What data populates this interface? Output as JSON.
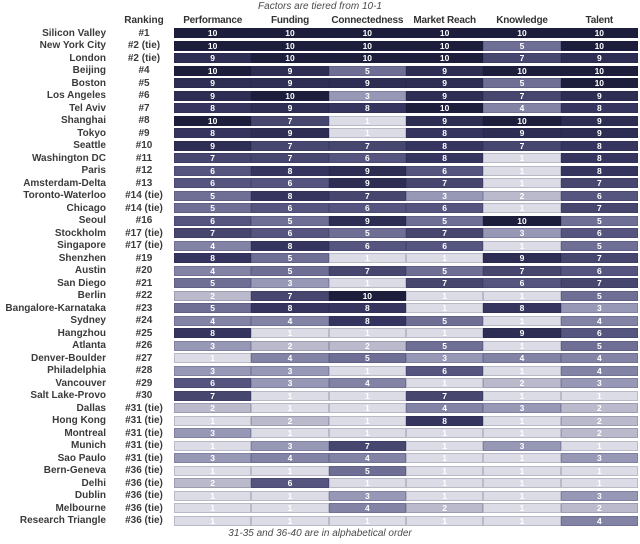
{
  "colors": {
    "10": "#1d1d3c",
    "9": "#2e2e54",
    "8": "#35355f",
    "7": "#46466f",
    "6": "#555580",
    "5": "#6f6f96",
    "4": "#8383a6",
    "3": "#9797b6",
    "2": "#babacc",
    "1": "#dcdce6",
    "cell_text": "#ffffff",
    "label_text": "#3b3b3b"
  },
  "chart_data": {
    "type": "heatmap",
    "title": "Factors are tiered from 10-1",
    "footnote": "31-35 and 36-40 are in alphabetical order",
    "ranking_header": "Ranking",
    "columns": [
      "Performance",
      "Funding",
      "Connectedness",
      "Market Reach",
      "Knowledge",
      "Talent"
    ],
    "scale": {
      "min": 1,
      "max": 10
    },
    "rows": [
      {
        "city": "Silicon Valley",
        "ranking": "#1",
        "scores": [
          10,
          10,
          10,
          10,
          10,
          10
        ]
      },
      {
        "city": "New York City",
        "ranking": "#2 (tie)",
        "scores": [
          10,
          10,
          10,
          10,
          5,
          10
        ]
      },
      {
        "city": "London",
        "ranking": "#2 (tie)",
        "scores": [
          9,
          10,
          10,
          10,
          7,
          9
        ]
      },
      {
        "city": "Beijing",
        "ranking": "#4",
        "scores": [
          10,
          9,
          5,
          9,
          10,
          10
        ]
      },
      {
        "city": "Boston",
        "ranking": "#5",
        "scores": [
          9,
          9,
          9,
          9,
          5,
          10
        ]
      },
      {
        "city": "Los Angeles",
        "ranking": "#6",
        "scores": [
          9,
          10,
          3,
          9,
          7,
          9
        ]
      },
      {
        "city": "Tel Aviv",
        "ranking": "#7",
        "scores": [
          8,
          9,
          8,
          10,
          4,
          8
        ]
      },
      {
        "city": "Shanghai",
        "ranking": "#8",
        "scores": [
          10,
          7,
          1,
          9,
          10,
          9
        ]
      },
      {
        "city": "Tokyo",
        "ranking": "#9",
        "scores": [
          8,
          9,
          1,
          8,
          9,
          9
        ]
      },
      {
        "city": "Seattle",
        "ranking": "#10",
        "scores": [
          9,
          7,
          7,
          8,
          7,
          8
        ]
      },
      {
        "city": "Washington DC",
        "ranking": "#11",
        "scores": [
          7,
          7,
          6,
          8,
          1,
          8
        ]
      },
      {
        "city": "Paris",
        "ranking": "#12",
        "scores": [
          6,
          8,
          9,
          6,
          1,
          8
        ]
      },
      {
        "city": "Amsterdam-Delta",
        "ranking": "#13",
        "scores": [
          6,
          6,
          9,
          7,
          1,
          7
        ]
      },
      {
        "city": "Toronto-Waterloo",
        "ranking": "#14 (tie)",
        "scores": [
          5,
          8,
          7,
          3,
          2,
          6
        ]
      },
      {
        "city": "Chicago",
        "ranking": "#14 (tie)",
        "scores": [
          5,
          6,
          6,
          6,
          1,
          7
        ]
      },
      {
        "city": "Seoul",
        "ranking": "#16",
        "scores": [
          6,
          5,
          9,
          5,
          10,
          5
        ]
      },
      {
        "city": "Stockholm",
        "ranking": "#17 (tie)",
        "scores": [
          7,
          6,
          5,
          7,
          3,
          6
        ]
      },
      {
        "city": "Singapore",
        "ranking": "#17 (tie)",
        "scores": [
          4,
          8,
          6,
          6,
          1,
          5
        ]
      },
      {
        "city": "Shenzhen",
        "ranking": "#19",
        "scores": [
          8,
          5,
          1,
          1,
          9,
          7
        ]
      },
      {
        "city": "Austin",
        "ranking": "#20",
        "scores": [
          4,
          5,
          7,
          5,
          7,
          6
        ]
      },
      {
        "city": "San Diego",
        "ranking": "#21",
        "scores": [
          5,
          3,
          1,
          7,
          6,
          7
        ]
      },
      {
        "city": "Berlin",
        "ranking": "#22",
        "scores": [
          2,
          7,
          10,
          1,
          1,
          5
        ]
      },
      {
        "city": "Bangalore-Karnataka",
        "ranking": "#23",
        "scores": [
          5,
          8,
          8,
          1,
          8,
          3
        ]
      },
      {
        "city": "Sydney",
        "ranking": "#24",
        "scores": [
          4,
          4,
          8,
          5,
          1,
          4
        ]
      },
      {
        "city": "Hangzhou",
        "ranking": "#25",
        "scores": [
          8,
          1,
          1,
          1,
          9,
          6
        ]
      },
      {
        "city": "Atlanta",
        "ranking": "#26",
        "scores": [
          3,
          2,
          2,
          5,
          1,
          5
        ]
      },
      {
        "city": "Denver-Boulder",
        "ranking": "#27",
        "scores": [
          1,
          4,
          5,
          3,
          4,
          4
        ]
      },
      {
        "city": "Philadelphia",
        "ranking": "#28",
        "scores": [
          3,
          3,
          1,
          6,
          1,
          4
        ]
      },
      {
        "city": "Vancouver",
        "ranking": "#29",
        "scores": [
          6,
          3,
          4,
          1,
          2,
          3
        ]
      },
      {
        "city": "Salt Lake-Provo",
        "ranking": "#30",
        "scores": [
          7,
          1,
          1,
          7,
          1,
          1
        ]
      },
      {
        "city": "Dallas",
        "ranking": "#31 (tie)",
        "scores": [
          2,
          1,
          1,
          4,
          3,
          2
        ]
      },
      {
        "city": "Hong Kong",
        "ranking": "#31 (tie)",
        "scores": [
          1,
          2,
          1,
          8,
          1,
          2
        ]
      },
      {
        "city": "Montreal",
        "ranking": "#31 (tie)",
        "scores": [
          3,
          1,
          1,
          1,
          1,
          2
        ]
      },
      {
        "city": "Munich",
        "ranking": "#31 (tie)",
        "scores": [
          1,
          3,
          7,
          1,
          3,
          1
        ]
      },
      {
        "city": "Sao Paulo",
        "ranking": "#31 (tie)",
        "scores": [
          3,
          4,
          4,
          1,
          1,
          3
        ]
      },
      {
        "city": "Bern-Geneva",
        "ranking": "#36 (tie)",
        "scores": [
          1,
          1,
          5,
          1,
          1,
          1
        ]
      },
      {
        "city": "Delhi",
        "ranking": "#36 (tie)",
        "scores": [
          2,
          6,
          1,
          1,
          1,
          1
        ]
      },
      {
        "city": "Dublin",
        "ranking": "#36 (tie)",
        "scores": [
          1,
          1,
          3,
          1,
          1,
          3
        ]
      },
      {
        "city": "Melbourne",
        "ranking": "#36 (tie)",
        "scores": [
          1,
          1,
          4,
          2,
          1,
          2
        ]
      },
      {
        "city": "Research Triangle",
        "ranking": "#36 (tie)",
        "scores": [
          1,
          1,
          1,
          1,
          1,
          4
        ]
      }
    ]
  }
}
